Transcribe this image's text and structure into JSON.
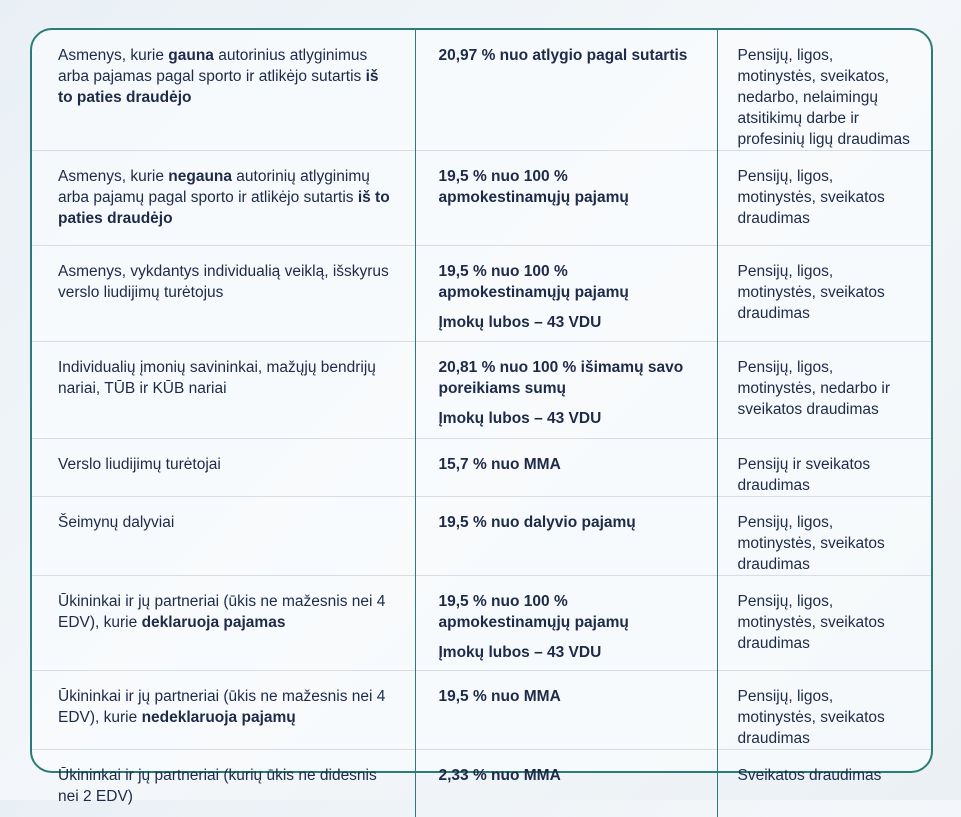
{
  "table": {
    "rows": [
      [
        [
          "Asmenys, kurie ",
          {
            "text": "gauna",
            "bold": true
          },
          " autorinius atlyginimus arba pajamas pagal sporto ir atlikėjo sutartis ",
          {
            "text": "iš to paties draudėjo",
            "bold": true
          }
        ],
        [
          "20,97 % nuo atlygio pagal sutartis"
        ],
        "Pensijų, ligos, motinystės, sveikatos, nedarbo, nelaimingų atsitikimų darbe ir profesinių ligų draudimas"
      ],
      [
        [
          "Asmenys, kurie ",
          {
            "text": "negauna",
            "bold": true
          },
          " autorinių atlyginimų arba pajamų pagal sporto ir atlikėjo sutartis ",
          {
            "text": "iš to paties draudėjo",
            "bold": true
          }
        ],
        [
          "19,5 % nuo 100 % apmokestinamųjų pajamų"
        ],
        "Pensijų, ligos, motinystės, sveikatos draudimas"
      ],
      [
        [
          "Asmenys, vykdantys individualią veiklą, išskyrus verslo liudijimų turėtojus"
        ],
        [
          "19,5 % nuo 100 % apmokestinamųjų pajamų",
          "Įmokų lubos – 43 VDU"
        ],
        "Pensijų, ligos, motinystės, sveikatos draudimas"
      ],
      [
        [
          "Individualių įmonių savininkai, mažųjų bendrijų nariai, TŪB ir KŪB nariai"
        ],
        [
          "20,81 % nuo 100 % išimamų savo poreikiams sumų",
          "Įmokų lubos – 43 VDU"
        ],
        "Pensijų, ligos, motinystės, nedarbo ir sveikatos draudimas"
      ],
      [
        [
          "Verslo liudijimų turėtojai"
        ],
        [
          "15,7 % nuo MMA"
        ],
        "Pensijų ir sveikatos draudimas"
      ],
      [
        [
          "Šeimynų dalyviai"
        ],
        [
          "19,5 %  nuo dalyvio pajamų"
        ],
        "Pensijų, ligos, motinystės, sveikatos draudimas"
      ],
      [
        [
          "Ūkininkai ir jų partneriai (ūkis ne mažesnis nei 4 EDV), kurie ",
          {
            "text": "deklaruoja pajamas",
            "bold": true
          }
        ],
        [
          "19,5 % nuo 100 % apmokestinamųjų pajamų",
          "Įmokų lubos – 43 VDU"
        ],
        "Pensijų, ligos, motinystės, sveikatos draudimas"
      ],
      [
        [
          "Ūkininkai ir jų partneriai (ūkis ne mažesnis nei 4 EDV), kurie ",
          {
            "text": "nedeklaruoja pajamų",
            "bold": true
          }
        ],
        [
          "19,5 % nuo MMA"
        ],
        "Pensijų, ligos, motinystės, sveikatos draudimas"
      ],
      [
        [
          "Ūkininkai ir jų partneriai (kurių ūkis ne didesnis nei 2 EDV)"
        ],
        [
          "2,33 % nuo MMA"
        ],
        "Sveikatos draudimas"
      ]
    ]
  }
}
